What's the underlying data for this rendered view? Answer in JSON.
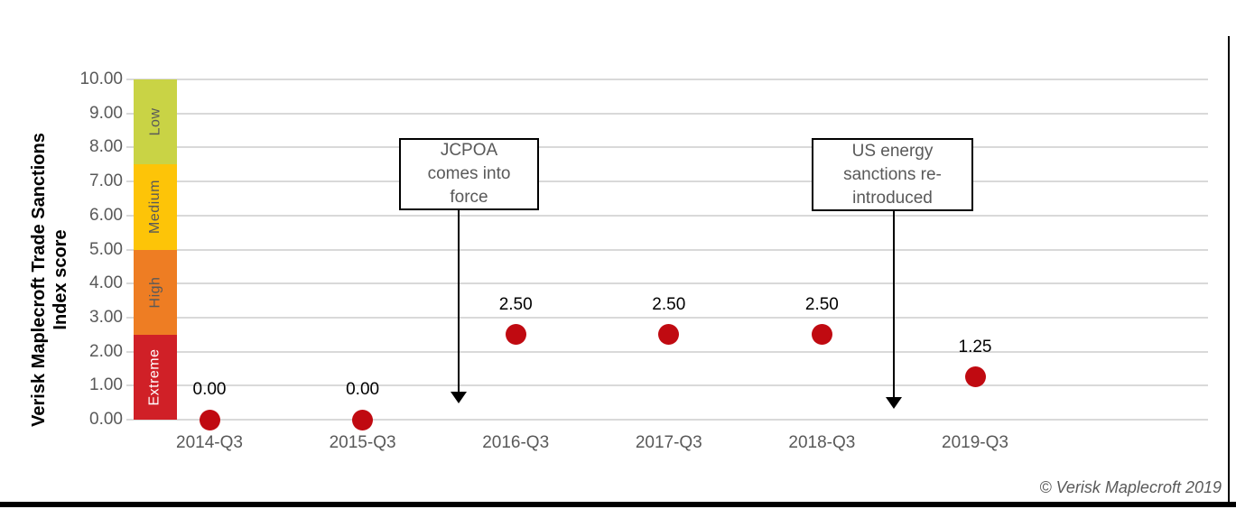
{
  "chart_data": {
    "type": "scatter",
    "categories": [
      "2014-Q3",
      "2015-Q3",
      "2016-Q3",
      "2017-Q3",
      "2018-Q3",
      "2019-Q3"
    ],
    "values": [
      0,
      0,
      2.5,
      2.5,
      2.5,
      1.25
    ],
    "data_labels": [
      "0.00",
      "0.00",
      "2.50",
      "2.50",
      "2.50",
      "1.25"
    ],
    "ylabel_line1": "Verisk Maplecroft Trade Sanctions",
    "ylabel_line2": "Index score",
    "xlabel": "",
    "ylim": [
      0,
      10
    ],
    "yticks": [
      "0.00",
      "1.00",
      "2.00",
      "3.00",
      "4.00",
      "5.00",
      "6.00",
      "7.00",
      "8.00",
      "9.00",
      "10.00"
    ],
    "grid": true,
    "gridline_color": "#d9d9d9",
    "point_color": "#c00a11",
    "risk_zones": [
      {
        "label": "Low",
        "from": 7.5,
        "to": 10,
        "color": "#c9d345",
        "label_color": "#595959"
      },
      {
        "label": "Medium",
        "from": 5,
        "to": 7.5,
        "color": "#fdc408",
        "label_color": "#595959"
      },
      {
        "label": "High",
        "from": 2.5,
        "to": 5,
        "color": "#ee7d23",
        "label_color": "#595959"
      },
      {
        "label": "Extreme",
        "from": 0,
        "to": 2.5,
        "color": "#d02027",
        "label_color": "#ffffff"
      }
    ],
    "annotations": [
      {
        "text": "JCPOA comes into force",
        "lines": [
          "JCPOA",
          "comes into",
          "force"
        ]
      },
      {
        "text": "US energy sanctions re-introduced",
        "lines": [
          "US energy",
          "sanctions re-",
          "introduced"
        ]
      }
    ]
  },
  "footer": {
    "copyright": "© Verisk Maplecroft 2019"
  }
}
